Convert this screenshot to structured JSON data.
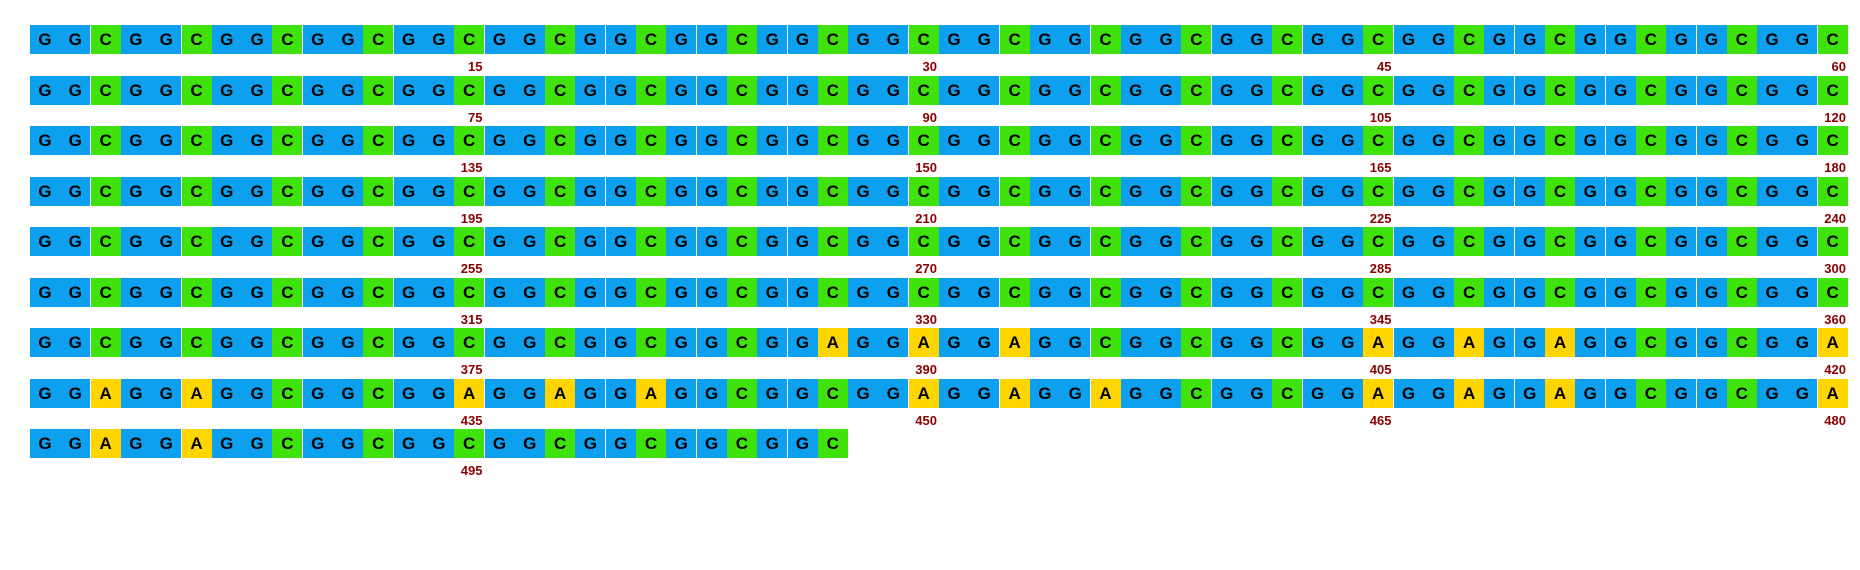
{
  "sequence": "GGCGGCGGCGGCGGCGGCGGCGGCGGCGGCGGCGGCGGCGGCGGCGGCGGCGGCGGCGGCGGCGGCGGCGGCGGCGGCGGCGGCGGCGGCGGCGGCGGCGGCGGCGGCGGCGGCGGCGGCGGCGGCGGCGGCGGCGGCGGCGGCGGCGGCGGCGGCGGCGGCGGCGGCGGCGGCGGCGGCGGCGGCGGCGGCGGCGGCGGCGGCGGCGGCGGCGGCGGCGGCGGCGGCGGCGGCGGCGGCGGCGGCGGCGGCGGCGGCGGCGGCGGCGGCGGCGGCGGCGGCGGCGGCGGCGGCGGCGGCGGCGGCGGCGGCGGCGGCGGCGGCGGCGGCGGCGGCGGCGGCGGCGGCGGCGGCGGCGGCGGCGGCGGCGGCGGCGGCGGCGGCGGAGGAGGAGGCGGCGGCGGAGGAGGAGGCGGCGGAGGAGGAGGCGGCGGAGGAGGAGGCGGCGGAGGAGGAGGCGGCGGAGGAGGAGGCGGCGGAGGAGGAGGCGGCGGCGGCGGCGGCGGC",
  "line_length": 60,
  "tick_interval": 15,
  "colors": {
    "G": "#0da0ee",
    "C": "#3fe20a",
    "A": "#ffd500"
  },
  "ruler_color": "#8b0000"
}
